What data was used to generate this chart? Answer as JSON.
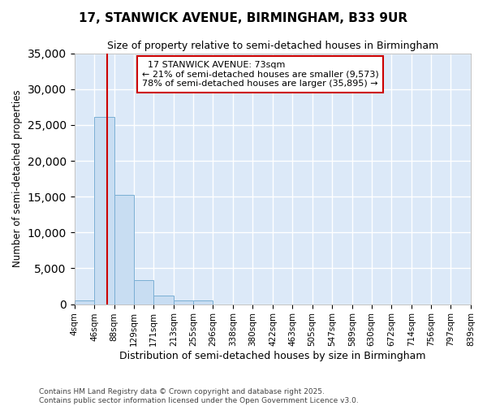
{
  "title": "17, STANWICK AVENUE, BIRMINGHAM, B33 9UR",
  "subtitle": "Size of property relative to semi-detached houses in Birmingham",
  "xlabel": "Distribution of semi-detached houses by size in Birmingham",
  "ylabel": "Number of semi-detached properties",
  "bin_labels": [
    "4sqm",
    "46sqm",
    "88sqm",
    "129sqm",
    "171sqm",
    "213sqm",
    "255sqm",
    "296sqm",
    "338sqm",
    "380sqm",
    "422sqm",
    "463sqm",
    "505sqm",
    "547sqm",
    "589sqm",
    "630sqm",
    "672sqm",
    "714sqm",
    "756sqm",
    "797sqm",
    "839sqm"
  ],
  "bin_edges": [
    4,
    46,
    88,
    129,
    171,
    213,
    255,
    296,
    338,
    380,
    422,
    463,
    505,
    547,
    589,
    630,
    672,
    714,
    756,
    797,
    839
  ],
  "bar_heights": [
    500,
    26100,
    15200,
    3300,
    1200,
    500,
    500,
    0,
    0,
    0,
    0,
    0,
    0,
    0,
    0,
    0,
    0,
    0,
    0,
    0
  ],
  "bar_color": "#c8ddf2",
  "bar_edge_color": "#7aafd4",
  "property_size": 73,
  "property_label": "17 STANWICK AVENUE: 73sqm",
  "pct_smaller": 21,
  "pct_larger": 78,
  "n_smaller": 9573,
  "n_larger": 35895,
  "annotation_box_color": "#cc0000",
  "vline_color": "#cc0000",
  "ylim": [
    0,
    35000
  ],
  "yticks": [
    0,
    5000,
    10000,
    15000,
    20000,
    25000,
    30000,
    35000
  ],
  "bg_color": "#ffffff",
  "plot_bg_color": "#dce9f8",
  "grid_color": "#ffffff",
  "footer": "Contains HM Land Registry data © Crown copyright and database right 2025.\nContains public sector information licensed under the Open Government Licence v3.0."
}
